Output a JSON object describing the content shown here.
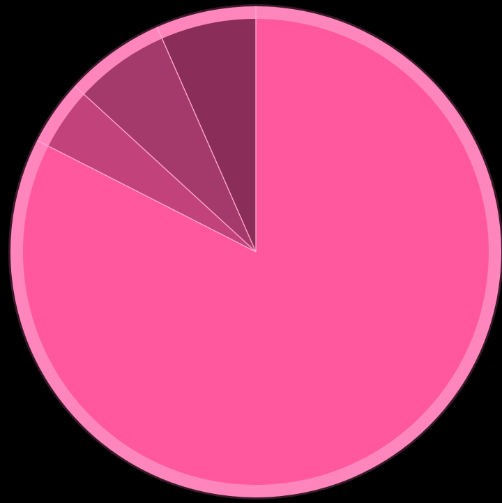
{
  "chart_data": {
    "type": "pie",
    "start_angle": "12 o'clock",
    "direction": "clockwise",
    "slices": [
      {
        "value": 82.5,
        "color": "#ff589f"
      },
      {
        "value": 4.3,
        "color": "#c2427c"
      },
      {
        "value": 6.6,
        "color": "#a43a6b"
      },
      {
        "value": 6.6,
        "color": "#8a2d58"
      }
    ]
  },
  "colors": {
    "background": "#000000",
    "rim": "#ff86bd",
    "outline": "#3a1a28",
    "separator": "#ffa6cc"
  }
}
